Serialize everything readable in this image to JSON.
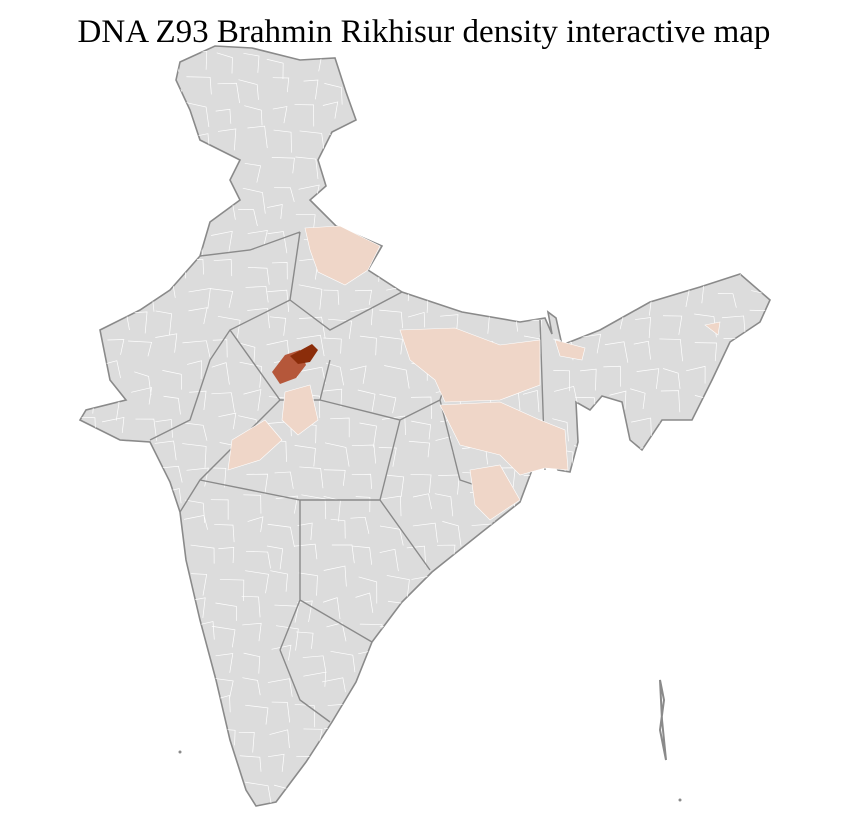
{
  "title": "DNA Z93 Brahmin Rikhisur density interactive map",
  "colors": {
    "background": "#ffffff",
    "no_data": "#dcdcdc",
    "state_border": "#8a8a8a",
    "district_border": "#ffffff",
    "density_low": "#efd6c8",
    "density_medium": "#b5573a",
    "density_high": "#8b2d0a"
  }
}
